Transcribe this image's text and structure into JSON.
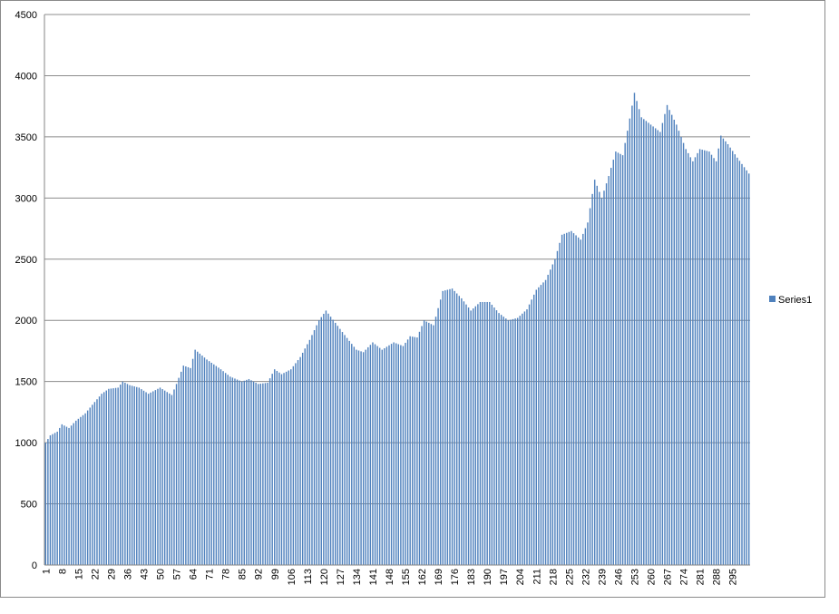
{
  "chart_data": {
    "type": "bar",
    "title": "",
    "xlabel": "",
    "ylabel": "",
    "ylim": [
      0,
      4500
    ],
    "yticks": [
      0,
      500,
      1000,
      1500,
      2000,
      2500,
      3000,
      3500,
      4000,
      4500
    ],
    "grid": true,
    "legend_position": "right",
    "bar_color": "#4f81bd",
    "categories": [
      "1",
      "8",
      "15",
      "22",
      "29",
      "36",
      "43",
      "50",
      "57",
      "64",
      "71",
      "78",
      "85",
      "92",
      "99",
      "106",
      "113",
      "120",
      "127",
      "134",
      "141",
      "148",
      "155",
      "162",
      "169",
      "176",
      "183",
      "190",
      "197",
      "204",
      "211",
      "218",
      "225",
      "232",
      "239",
      "246",
      "253",
      "260",
      "267",
      "274",
      "281",
      "288",
      "295"
    ],
    "x_count": 302,
    "series": [
      {
        "name": "Series1",
        "anchors": [
          [
            1,
            1000
          ],
          [
            3,
            1060
          ],
          [
            6,
            1090
          ],
          [
            8,
            1150
          ],
          [
            11,
            1120
          ],
          [
            14,
            1180
          ],
          [
            18,
            1240
          ],
          [
            21,
            1310
          ],
          [
            25,
            1400
          ],
          [
            28,
            1440
          ],
          [
            32,
            1450
          ],
          [
            34,
            1500
          ],
          [
            37,
            1470
          ],
          [
            41,
            1450
          ],
          [
            45,
            1400
          ],
          [
            50,
            1450
          ],
          [
            55,
            1390
          ],
          [
            57,
            1480
          ],
          [
            60,
            1630
          ],
          [
            63,
            1610
          ],
          [
            65,
            1760
          ],
          [
            70,
            1680
          ],
          [
            76,
            1600
          ],
          [
            80,
            1540
          ],
          [
            85,
            1500
          ],
          [
            88,
            1520
          ],
          [
            92,
            1480
          ],
          [
            96,
            1490
          ],
          [
            99,
            1600
          ],
          [
            102,
            1560
          ],
          [
            106,
            1600
          ],
          [
            110,
            1700
          ],
          [
            114,
            1840
          ],
          [
            118,
            2000
          ],
          [
            121,
            2080
          ],
          [
            125,
            1980
          ],
          [
            129,
            1880
          ],
          [
            134,
            1760
          ],
          [
            137,
            1740
          ],
          [
            141,
            1820
          ],
          [
            145,
            1760
          ],
          [
            150,
            1820
          ],
          [
            154,
            1790
          ],
          [
            157,
            1870
          ],
          [
            160,
            1860
          ],
          [
            163,
            2000
          ],
          [
            167,
            1960
          ],
          [
            171,
            2240
          ],
          [
            175,
            2260
          ],
          [
            179,
            2180
          ],
          [
            183,
            2080
          ],
          [
            187,
            2150
          ],
          [
            191,
            2150
          ],
          [
            195,
            2060
          ],
          [
            199,
            2000
          ],
          [
            203,
            2020
          ],
          [
            207,
            2090
          ],
          [
            211,
            2250
          ],
          [
            215,
            2330
          ],
          [
            219,
            2500
          ],
          [
            222,
            2700
          ],
          [
            226,
            2730
          ],
          [
            230,
            2660
          ],
          [
            233,
            2800
          ],
          [
            236,
            3150
          ],
          [
            239,
            3000
          ],
          [
            242,
            3180
          ],
          [
            245,
            3380
          ],
          [
            248,
            3350
          ],
          [
            251,
            3650
          ],
          [
            253,
            3860
          ],
          [
            256,
            3660
          ],
          [
            260,
            3600
          ],
          [
            264,
            3540
          ],
          [
            267,
            3760
          ],
          [
            271,
            3600
          ],
          [
            275,
            3400
          ],
          [
            278,
            3300
          ],
          [
            281,
            3400
          ],
          [
            285,
            3380
          ],
          [
            288,
            3300
          ],
          [
            290,
            3510
          ],
          [
            293,
            3440
          ],
          [
            297,
            3330
          ],
          [
            302,
            3200
          ]
        ]
      }
    ]
  }
}
